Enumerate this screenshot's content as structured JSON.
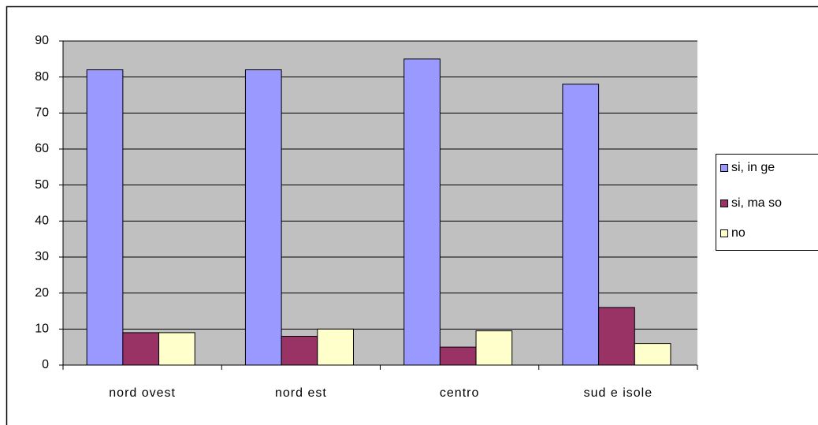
{
  "chart_data": {
    "type": "bar",
    "categories": [
      "nord ovest",
      "nord est",
      "centro",
      "sud e isole"
    ],
    "series": [
      {
        "name": "si, in ge",
        "color": "#9999ff",
        "values": [
          82,
          82,
          85,
          78
        ]
      },
      {
        "name": "si, ma so",
        "color": "#993366",
        "values": [
          9,
          8,
          5,
          16
        ]
      },
      {
        "name": "no",
        "color": "#ffffcc",
        "values": [
          9,
          10,
          9.5,
          6
        ]
      }
    ],
    "ylim": [
      0,
      90
    ],
    "yticks": [
      0,
      10,
      20,
      30,
      40,
      50,
      60,
      70,
      80,
      90
    ],
    "grid": true,
    "legend": "right",
    "plot_background": "#c0c0c0"
  }
}
